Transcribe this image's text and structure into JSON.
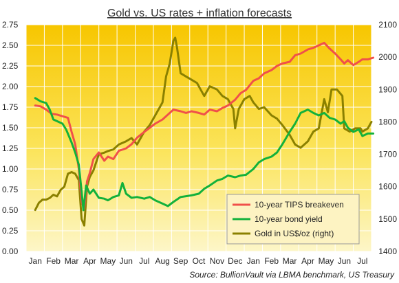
{
  "chart_data": {
    "type": "line",
    "title": "Gold vs. US rates + inflation forecasts",
    "source": "Source: BullionVault via LBMA benchmark, US Treasury",
    "x_labels": [
      "Jan",
      "Feb",
      "Mar",
      "Apr",
      "May",
      "Jun",
      "Jul",
      "Aug",
      "Sep",
      "Oct",
      "Nov",
      "Dec",
      "Jan",
      "Feb",
      "Mar",
      "Apr",
      "May",
      "Jun",
      "Jul"
    ],
    "y_left": {
      "min": 0.0,
      "max": 2.75,
      "ticks": [
        "0.00",
        "0.25",
        "0.50",
        "0.75",
        "1.00",
        "1.25",
        "1.50",
        "1.75",
        "2.00",
        "2.25",
        "2.50",
        "2.75"
      ]
    },
    "y_right": {
      "min": 1400,
      "max": 2100,
      "ticks": [
        "1400",
        "1500",
        "1600",
        "1700",
        "1800",
        "1900",
        "2000",
        "2100"
      ]
    },
    "grid": true,
    "legend_position": "bottom-right",
    "series": [
      {
        "name": "10-year TIPS breakeven",
        "axis": "left",
        "color": "#f0504a",
        "points": [
          [
            0.0,
            1.77
          ],
          [
            0.3,
            1.76
          ],
          [
            0.6,
            1.72
          ],
          [
            0.9,
            1.67
          ],
          [
            1.2,
            1.66
          ],
          [
            1.5,
            1.64
          ],
          [
            1.8,
            1.62
          ],
          [
            2.0,
            1.45
          ],
          [
            2.2,
            1.3
          ],
          [
            2.4,
            1.0
          ],
          [
            2.55,
            0.6
          ],
          [
            2.7,
            0.52
          ],
          [
            2.85,
            0.85
          ],
          [
            3.0,
            0.95
          ],
          [
            3.2,
            1.12
          ],
          [
            3.5,
            1.2
          ],
          [
            3.8,
            1.1
          ],
          [
            4.0,
            1.15
          ],
          [
            4.3,
            1.12
          ],
          [
            4.6,
            1.22
          ],
          [
            5.0,
            1.25
          ],
          [
            5.3,
            1.3
          ],
          [
            5.6,
            1.38
          ],
          [
            6.0,
            1.45
          ],
          [
            6.3,
            1.5
          ],
          [
            6.6,
            1.55
          ],
          [
            7.0,
            1.6
          ],
          [
            7.3,
            1.66
          ],
          [
            7.6,
            1.72
          ],
          [
            8.0,
            1.7
          ],
          [
            8.3,
            1.68
          ],
          [
            8.6,
            1.7
          ],
          [
            9.0,
            1.68
          ],
          [
            9.3,
            1.66
          ],
          [
            9.6,
            1.72
          ],
          [
            10.0,
            1.7
          ],
          [
            10.3,
            1.74
          ],
          [
            10.6,
            1.77
          ],
          [
            11.0,
            1.84
          ],
          [
            11.3,
            1.92
          ],
          [
            11.6,
            1.96
          ],
          [
            12.0,
            2.07
          ],
          [
            12.3,
            2.1
          ],
          [
            12.6,
            2.16
          ],
          [
            13.0,
            2.2
          ],
          [
            13.3,
            2.25
          ],
          [
            13.6,
            2.28
          ],
          [
            14.0,
            2.3
          ],
          [
            14.3,
            2.38
          ],
          [
            14.6,
            2.4
          ],
          [
            15.0,
            2.45
          ],
          [
            15.3,
            2.47
          ],
          [
            15.6,
            2.5
          ],
          [
            15.9,
            2.53
          ],
          [
            16.2,
            2.46
          ],
          [
            16.5,
            2.4
          ],
          [
            16.8,
            2.33
          ],
          [
            17.0,
            2.28
          ],
          [
            17.2,
            2.32
          ],
          [
            17.5,
            2.26
          ],
          [
            17.8,
            2.3
          ],
          [
            18.0,
            2.33
          ],
          [
            18.3,
            2.33
          ],
          [
            18.6,
            2.35
          ]
        ]
      },
      {
        "name": "10-year bond yield",
        "axis": "left",
        "color": "#13b13b",
        "points": [
          [
            0.0,
            1.86
          ],
          [
            0.3,
            1.82
          ],
          [
            0.6,
            1.8
          ],
          [
            0.8,
            1.72
          ],
          [
            1.0,
            1.6
          ],
          [
            1.2,
            1.58
          ],
          [
            1.5,
            1.55
          ],
          [
            1.7,
            1.48
          ],
          [
            2.0,
            1.32
          ],
          [
            2.2,
            1.2
          ],
          [
            2.4,
            1.05
          ],
          [
            2.55,
            0.73
          ],
          [
            2.65,
            0.5
          ],
          [
            2.8,
            0.8
          ],
          [
            3.0,
            0.7
          ],
          [
            3.2,
            0.75
          ],
          [
            3.5,
            0.65
          ],
          [
            3.8,
            0.64
          ],
          [
            4.0,
            0.62
          ],
          [
            4.3,
            0.66
          ],
          [
            4.6,
            0.68
          ],
          [
            4.8,
            0.83
          ],
          [
            5.0,
            0.7
          ],
          [
            5.3,
            0.65
          ],
          [
            5.6,
            0.66
          ],
          [
            6.0,
            0.64
          ],
          [
            6.3,
            0.66
          ],
          [
            6.6,
            0.62
          ],
          [
            7.0,
            0.58
          ],
          [
            7.3,
            0.55
          ],
          [
            7.6,
            0.6
          ],
          [
            8.0,
            0.66
          ],
          [
            8.3,
            0.67
          ],
          [
            8.6,
            0.68
          ],
          [
            9.0,
            0.7
          ],
          [
            9.3,
            0.76
          ],
          [
            9.6,
            0.8
          ],
          [
            10.0,
            0.86
          ],
          [
            10.3,
            0.88
          ],
          [
            10.6,
            0.92
          ],
          [
            11.0,
            0.9
          ],
          [
            11.3,
            0.92
          ],
          [
            11.6,
            0.93
          ],
          [
            12.0,
            1.0
          ],
          [
            12.3,
            1.08
          ],
          [
            12.6,
            1.12
          ],
          [
            13.0,
            1.15
          ],
          [
            13.3,
            1.2
          ],
          [
            13.6,
            1.3
          ],
          [
            14.0,
            1.45
          ],
          [
            14.3,
            1.55
          ],
          [
            14.6,
            1.68
          ],
          [
            15.0,
            1.72
          ],
          [
            15.3,
            1.68
          ],
          [
            15.6,
            1.65
          ],
          [
            15.9,
            1.68
          ],
          [
            16.2,
            1.62
          ],
          [
            16.5,
            1.6
          ],
          [
            16.8,
            1.55
          ],
          [
            17.0,
            1.58
          ],
          [
            17.2,
            1.5
          ],
          [
            17.5,
            1.45
          ],
          [
            17.8,
            1.48
          ],
          [
            18.0,
            1.4
          ],
          [
            18.3,
            1.43
          ],
          [
            18.6,
            1.43
          ]
        ]
      },
      {
        "name": "Gold in US$/oz (right)",
        "axis": "right",
        "color": "#8a8000",
        "points": [
          [
            0.0,
            1528
          ],
          [
            0.2,
            1550
          ],
          [
            0.4,
            1560
          ],
          [
            0.6,
            1560
          ],
          [
            0.8,
            1565
          ],
          [
            1.0,
            1575
          ],
          [
            1.2,
            1570
          ],
          [
            1.4,
            1590
          ],
          [
            1.6,
            1600
          ],
          [
            1.8,
            1640
          ],
          [
            2.0,
            1645
          ],
          [
            2.2,
            1640
          ],
          [
            2.4,
            1620
          ],
          [
            2.55,
            1500
          ],
          [
            2.7,
            1480
          ],
          [
            2.85,
            1600
          ],
          [
            3.0,
            1630
          ],
          [
            3.2,
            1650
          ],
          [
            3.5,
            1700
          ],
          [
            3.8,
            1705
          ],
          [
            4.0,
            1710
          ],
          [
            4.3,
            1715
          ],
          [
            4.6,
            1730
          ],
          [
            5.0,
            1740
          ],
          [
            5.3,
            1750
          ],
          [
            5.6,
            1730
          ],
          [
            6.0,
            1770
          ],
          [
            6.3,
            1790
          ],
          [
            6.6,
            1820
          ],
          [
            7.0,
            1860
          ],
          [
            7.2,
            1940
          ],
          [
            7.4,
            1980
          ],
          [
            7.6,
            2050
          ],
          [
            7.7,
            2060
          ],
          [
            7.8,
            2030
          ],
          [
            8.0,
            1950
          ],
          [
            8.3,
            1940
          ],
          [
            8.6,
            1930
          ],
          [
            8.9,
            1920
          ],
          [
            9.1,
            1900
          ],
          [
            9.3,
            1880
          ],
          [
            9.6,
            1910
          ],
          [
            10.0,
            1900
          ],
          [
            10.3,
            1880
          ],
          [
            10.6,
            1870
          ],
          [
            10.9,
            1840
          ],
          [
            11.0,
            1780
          ],
          [
            11.2,
            1840
          ],
          [
            11.5,
            1870
          ],
          [
            11.8,
            1880
          ],
          [
            12.0,
            1860
          ],
          [
            12.3,
            1840
          ],
          [
            12.6,
            1845
          ],
          [
            13.0,
            1820
          ],
          [
            13.3,
            1810
          ],
          [
            13.6,
            1790
          ],
          [
            14.0,
            1760
          ],
          [
            14.3,
            1730
          ],
          [
            14.6,
            1720
          ],
          [
            15.0,
            1740
          ],
          [
            15.3,
            1770
          ],
          [
            15.6,
            1780
          ],
          [
            15.9,
            1870
          ],
          [
            16.1,
            1830
          ],
          [
            16.3,
            1900
          ],
          [
            16.6,
            1900
          ],
          [
            16.9,
            1880
          ],
          [
            17.0,
            1780
          ],
          [
            17.3,
            1770
          ],
          [
            17.6,
            1780
          ],
          [
            17.9,
            1780
          ],
          [
            18.0,
            1770
          ],
          [
            18.3,
            1780
          ],
          [
            18.5,
            1800
          ]
        ]
      }
    ]
  }
}
